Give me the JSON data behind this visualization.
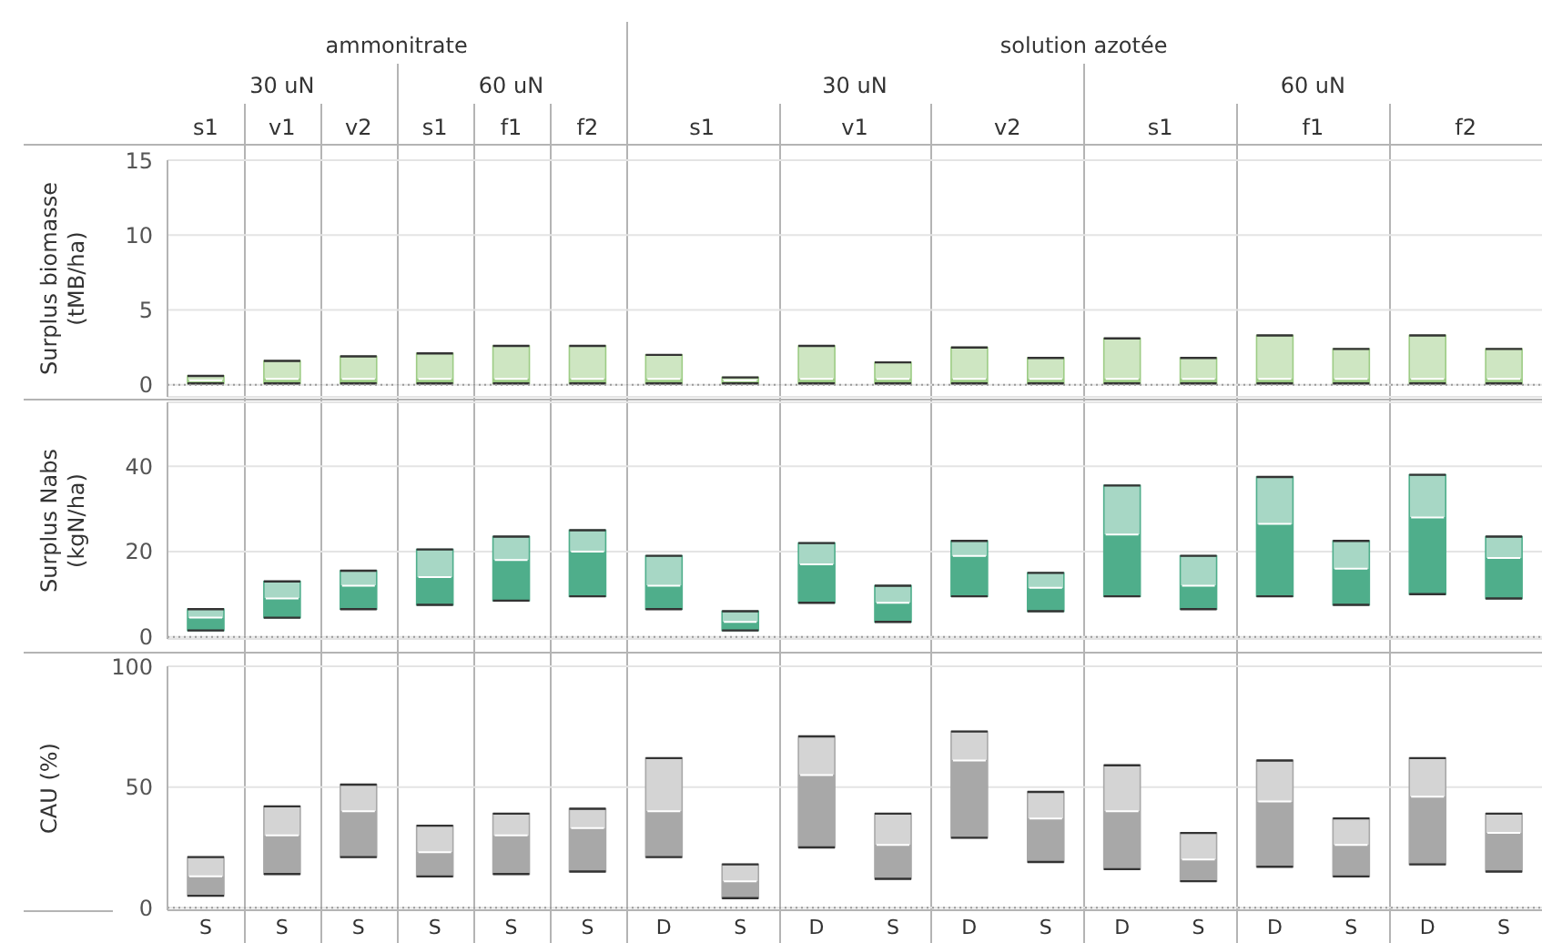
{
  "chart_data": [
    {
      "type": "box",
      "color": "#9dcc85",
      "categories": [
        null,
        null,
        null,
        null,
        null,
        null,
        null,
        null,
        null,
        null,
        null,
        null,
        null,
        null,
        null,
        null,
        null,
        null
      ],
      "boxes": [
        {
          "low": 0.1,
          "q1": 0.1,
          "median": 0.3,
          "q3": 0.6,
          "high": 0.6
        },
        {
          "low": 0.1,
          "q1": 0.1,
          "median": 0.4,
          "q3": 1.6,
          "high": 1.6
        },
        {
          "low": 0.1,
          "q1": 0.1,
          "median": 0.4,
          "q3": 1.9,
          "high": 1.9
        },
        {
          "low": 0.1,
          "q1": 0.1,
          "median": 0.4,
          "q3": 2.1,
          "high": 2.1
        },
        {
          "low": 0.1,
          "q1": 0.1,
          "median": 0.4,
          "q3": 2.6,
          "high": 2.6
        },
        {
          "low": 0.1,
          "q1": 0.1,
          "median": 0.4,
          "q3": 2.6,
          "high": 2.6
        },
        {
          "low": 0.1,
          "q1": 0.1,
          "median": 0.4,
          "q3": 2.0,
          "high": 2.0
        },
        {
          "low": 0.1,
          "q1": 0.1,
          "median": 0.3,
          "q3": 0.5,
          "high": 0.5
        },
        {
          "low": 0.1,
          "q1": 0.1,
          "median": 0.4,
          "q3": 2.6,
          "high": 2.6
        },
        {
          "low": 0.1,
          "q1": 0.1,
          "median": 0.4,
          "q3": 1.5,
          "high": 1.5
        },
        {
          "low": 0.1,
          "q1": 0.1,
          "median": 0.4,
          "q3": 2.5,
          "high": 2.5
        },
        {
          "low": 0.1,
          "q1": 0.1,
          "median": 0.4,
          "q3": 1.8,
          "high": 1.8
        },
        {
          "low": 0.1,
          "q1": 0.1,
          "median": 0.4,
          "q3": 3.1,
          "high": 3.1
        },
        {
          "low": 0.1,
          "q1": 0.1,
          "median": 0.4,
          "q3": 1.8,
          "high": 1.8
        },
        {
          "low": 0.1,
          "q1": 0.1,
          "median": 0.4,
          "q3": 3.3,
          "high": 3.3
        },
        {
          "low": 0.1,
          "q1": 0.1,
          "median": 0.4,
          "q3": 2.4,
          "high": 2.4
        },
        {
          "low": 0.1,
          "q1": 0.1,
          "median": 0.4,
          "q3": 3.3,
          "high": 3.3
        },
        {
          "low": 0.1,
          "q1": 0.1,
          "median": 0.4,
          "q3": 2.4,
          "high": 2.4
        }
      ],
      "ylabel": "Surplus biomasse (tMB/ha)",
      "ylim": [
        -0.8,
        15
      ],
      "yticks": [
        0,
        5,
        10,
        15
      ],
      "grid": "y",
      "tick_labels": "y",
      "ref_lines": [
        {
          "axis": "y",
          "value": 0,
          "color": "#9a9a9a",
          "line_style": "dotted"
        }
      ],
      "annotations": [
        "ammonitrate",
        "solution azotée",
        "30 uN",
        "60 uN",
        "30 uN",
        "60 uN",
        "s1",
        "v1",
        "v2",
        "s1",
        "f1",
        "f2",
        "s1",
        "v1",
        "v2",
        "s1",
        "f1",
        "f2"
      ]
    },
    {
      "type": "box",
      "color": "#4fae8b",
      "categories": [
        null,
        null,
        null,
        null,
        null,
        null,
        null,
        null,
        null,
        null,
        null,
        null,
        null,
        null,
        null,
        null,
        null,
        null
      ],
      "boxes": [
        {
          "low": 1.5,
          "q1": 1.5,
          "median": 4.5,
          "q3": 6.5,
          "high": 6.5
        },
        {
          "low": 4.5,
          "q1": 4.5,
          "median": 9,
          "q3": 13,
          "high": 13
        },
        {
          "low": 6.5,
          "q1": 6.5,
          "median": 12,
          "q3": 15.5,
          "high": 15.5
        },
        {
          "low": 7.5,
          "q1": 7.5,
          "median": 14,
          "q3": 20.5,
          "high": 20.5
        },
        {
          "low": 8.5,
          "q1": 8.5,
          "median": 18,
          "q3": 23.5,
          "high": 23.5
        },
        {
          "low": 9.5,
          "q1": 9.5,
          "median": 20,
          "q3": 25,
          "high": 25
        },
        {
          "low": 6.5,
          "q1": 6.5,
          "median": 12,
          "q3": 19,
          "high": 19
        },
        {
          "low": 1.5,
          "q1": 1.5,
          "median": 3.5,
          "q3": 6,
          "high": 6
        },
        {
          "low": 8,
          "q1": 8,
          "median": 17,
          "q3": 22,
          "high": 22
        },
        {
          "low": 3.5,
          "q1": 3.5,
          "median": 8,
          "q3": 12,
          "high": 12
        },
        {
          "low": 9.5,
          "q1": 9.5,
          "median": 19,
          "q3": 22.5,
          "high": 22.5
        },
        {
          "low": 6,
          "q1": 6,
          "median": 11.5,
          "q3": 15,
          "high": 15
        },
        {
          "low": 9.5,
          "q1": 9.5,
          "median": 24,
          "q3": 35.5,
          "high": 35.5
        },
        {
          "low": 6.5,
          "q1": 6.5,
          "median": 12,
          "q3": 19,
          "high": 19
        },
        {
          "low": 9.5,
          "q1": 9.5,
          "median": 26.5,
          "q3": 37.5,
          "high": 37.5
        },
        {
          "low": 7.5,
          "q1": 7.5,
          "median": 16,
          "q3": 22.5,
          "high": 22.5
        },
        {
          "low": 10,
          "q1": 10,
          "median": 28,
          "q3": 38,
          "high": 38
        },
        {
          "low": 9,
          "q1": 9,
          "median": 18.5,
          "q3": 23.5,
          "high": 23.5
        }
      ],
      "ylabel": "Surplus Nabs (kgN/ha)",
      "ylim": [
        -0.5,
        55
      ],
      "yticks": [
        0,
        20,
        40
      ],
      "grid": "y",
      "tick_labels": "y",
      "ref_lines": [
        {
          "axis": "y",
          "value": 0,
          "color": "#9a9a9a",
          "line_style": "dotted"
        }
      ]
    },
    {
      "type": "box",
      "color": "#a8a8a8",
      "categories": [
        "S",
        "S",
        "S",
        "S",
        "S",
        "S",
        "D",
        "S",
        "D",
        "S",
        "D",
        "S",
        "D",
        "S",
        "D",
        "S",
        "D",
        "S"
      ],
      "boxes": [
        {
          "low": 5,
          "q1": 5,
          "median": 13,
          "q3": 21,
          "high": 21
        },
        {
          "low": 14,
          "q1": 14,
          "median": 30,
          "q3": 42,
          "high": 42
        },
        {
          "low": 21,
          "q1": 21,
          "median": 40,
          "q3": 51,
          "high": 51
        },
        {
          "low": 13,
          "q1": 13,
          "median": 23,
          "q3": 34,
          "high": 34
        },
        {
          "low": 14,
          "q1": 14,
          "median": 30,
          "q3": 39,
          "high": 39
        },
        {
          "low": 15,
          "q1": 15,
          "median": 33,
          "q3": 41,
          "high": 41
        },
        {
          "low": 21,
          "q1": 21,
          "median": 40,
          "q3": 62,
          "high": 62
        },
        {
          "low": 4,
          "q1": 4,
          "median": 11,
          "q3": 18,
          "high": 18
        },
        {
          "low": 25,
          "q1": 25,
          "median": 55,
          "q3": 71,
          "high": 71
        },
        {
          "low": 12,
          "q1": 12,
          "median": 26,
          "q3": 39,
          "high": 39
        },
        {
          "low": 29,
          "q1": 29,
          "median": 61,
          "q3": 73,
          "high": 73
        },
        {
          "low": 19,
          "q1": 19,
          "median": 37,
          "q3": 48,
          "high": 48
        },
        {
          "low": 16,
          "q1": 16,
          "median": 40,
          "q3": 59,
          "high": 59
        },
        {
          "low": 11,
          "q1": 11,
          "median": 20,
          "q3": 31,
          "high": 31
        },
        {
          "low": 17,
          "q1": 17,
          "median": 44,
          "q3": 61,
          "high": 61
        },
        {
          "low": 13,
          "q1": 13,
          "median": 26,
          "q3": 37,
          "high": 37
        },
        {
          "low": 18,
          "q1": 18,
          "median": 46,
          "q3": 62,
          "high": 62
        },
        {
          "low": 15,
          "q1": 15,
          "median": 31,
          "q3": 39,
          "high": 39
        }
      ],
      "ylabel": "CAU (%)",
      "ylim": [
        -1,
        100
      ],
      "yticks": [
        0,
        50,
        100
      ],
      "grid": "y",
      "ref_lines": [
        {
          "axis": "y",
          "value": 0,
          "color": "#9a9a9a",
          "line_style": "dotted"
        }
      ]
    }
  ]
}
